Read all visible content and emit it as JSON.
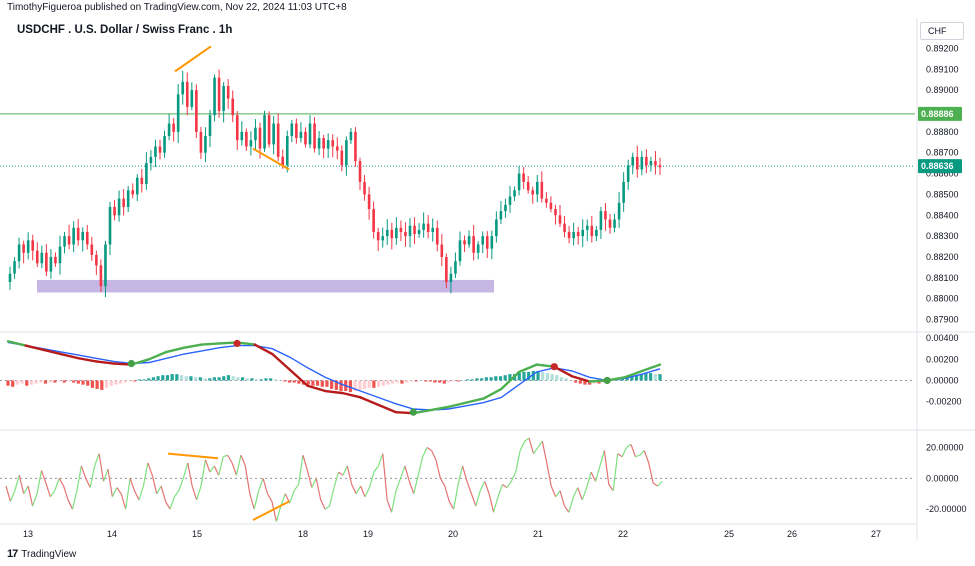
{
  "header": {
    "published_by": "TimothyFigueroa published on TradingView.com, Nov 22, 2024 11:03 UTC+8",
    "title": "USDCHF . U.S. Dollar / Swiss Franc . 1h",
    "currency": "CHF"
  },
  "footer": {
    "logo_text": "TradingView",
    "logo_mark": "17"
  },
  "colors": {
    "bull": "#089981",
    "bear": "#f23645",
    "level_line": "#4caf50",
    "last_price": "#089981",
    "zone": "#b39ddb",
    "divergence": "#ff9800",
    "fast_line": "#4caf50",
    "fast_line_down": "#b71c1c",
    "slow_line": "#2962ff",
    "hist_pos_strong": "#26a69a",
    "hist_pos_weak": "#b2dfdb",
    "hist_neg_strong": "#ef5350",
    "hist_neg_weak": "#ffcdd2",
    "osc_up": "#7ee07e",
    "osc_down": "#e57373"
  },
  "chart_data": [
    {
      "type": "candlestick",
      "symbol": "USDCHF",
      "timeframe": "1h",
      "x_axis_ticks": [
        "13",
        "14",
        "15",
        "18",
        "19",
        "20",
        "21",
        "22",
        "25",
        "26",
        "27"
      ],
      "y_range": [
        0.8785,
        0.8925
      ],
      "y_ticks": [
        "0.89200",
        "0.89100",
        "0.89000",
        "0.88900",
        "0.88800",
        "0.88700",
        "0.88600",
        "0.88500",
        "0.88400",
        "0.88300",
        "0.88200",
        "0.88100",
        "0.88000",
        "0.87900"
      ],
      "horizontal_level": {
        "value": 0.88886,
        "label": "0.88886"
      },
      "last_price": {
        "value": 0.88636,
        "label": "0.88636"
      },
      "demand_zone": {
        "from": 0.8803,
        "to": 0.8809
      },
      "divergence_lines": [
        {
          "from": 0.8909,
          "to": 0.8921
        },
        {
          "from": 0.8872,
          "to": 0.8862
        }
      ],
      "close_path": [
        0.8812,
        0.8818,
        0.8826,
        0.8822,
        0.8828,
        0.8823,
        0.8817,
        0.8822,
        0.8813,
        0.882,
        0.8817,
        0.8825,
        0.883,
        0.8826,
        0.8834,
        0.8828,
        0.8832,
        0.8826,
        0.8821,
        0.8816,
        0.8806,
        0.8826,
        0.8844,
        0.884,
        0.8848,
        0.8844,
        0.8852,
        0.885,
        0.8858,
        0.8855,
        0.8865,
        0.8868,
        0.8873,
        0.887,
        0.8878,
        0.8884,
        0.888,
        0.8898,
        0.8904,
        0.8892,
        0.89,
        0.888,
        0.887,
        0.8878,
        0.8888,
        0.8906,
        0.889,
        0.8902,
        0.8896,
        0.8888,
        0.8876,
        0.888,
        0.8873,
        0.8876,
        0.8882,
        0.8872,
        0.8888,
        0.8874,
        0.8884,
        0.8868,
        0.8864,
        0.8878,
        0.8884,
        0.8877,
        0.888,
        0.8874,
        0.8884,
        0.8872,
        0.8877,
        0.8872,
        0.8876,
        0.8873,
        0.8871,
        0.8864,
        0.8876,
        0.888,
        0.8866,
        0.8856,
        0.885,
        0.8843,
        0.8832,
        0.8828,
        0.883,
        0.8833,
        0.8829,
        0.8834,
        0.8832,
        0.883,
        0.8835,
        0.8831,
        0.8833,
        0.8836,
        0.8832,
        0.8834,
        0.8826,
        0.882,
        0.8808,
        0.8812,
        0.8818,
        0.8828,
        0.8826,
        0.883,
        0.8822,
        0.8826,
        0.883,
        0.8824,
        0.883,
        0.8838,
        0.8842,
        0.8845,
        0.8849,
        0.8852,
        0.886,
        0.8856,
        0.8852,
        0.885,
        0.8856,
        0.8848,
        0.8846,
        0.8843,
        0.884,
        0.8836,
        0.8832,
        0.8829,
        0.8832,
        0.883,
        0.8833,
        0.8835,
        0.883,
        0.8833,
        0.8842,
        0.8838,
        0.8834,
        0.8838,
        0.8846,
        0.8856,
        0.8864,
        0.8868,
        0.8862,
        0.8868,
        0.8864,
        0.8866,
        0.8864,
        0.8863
      ]
    },
    {
      "type": "line",
      "name_shown": "",
      "y_range": [
        -0.0045,
        0.0043
      ],
      "y_ticks": [
        "0.00400",
        "0.00200",
        "0.00000",
        "-0.00200"
      ],
      "fast_line": [
        0.0037,
        0.0033,
        0.0029,
        0.0025,
        0.0021,
        0.0018,
        0.0016,
        0.0015,
        0.002,
        0.0027,
        0.0031,
        0.0034,
        0.0035,
        0.0036,
        0.0034,
        0.0025,
        0.001,
        -0.0005,
        -0.001,
        -0.0012,
        -0.0016,
        -0.0023,
        -0.003,
        -0.0031,
        -0.0028,
        -0.0025,
        -0.0021,
        -0.0017,
        -0.0008,
        0.0008,
        0.0015,
        0.0013,
        0.0004,
        -0.0001,
        0.0,
        0.0003,
        0.0009,
        0.0015
      ],
      "slow_line": [
        0.0036,
        0.0033,
        0.003,
        0.0027,
        0.0024,
        0.0021,
        0.0018,
        0.0016,
        0.0017,
        0.0021,
        0.0025,
        0.0028,
        0.0031,
        0.0033,
        0.0033,
        0.003,
        0.0022,
        0.0012,
        0.0003,
        -0.0004,
        -0.001,
        -0.0016,
        -0.0022,
        -0.0027,
        -0.0028,
        -0.0027,
        -0.0024,
        -0.0021,
        -0.0016,
        -0.0004,
        0.0008,
        0.0012,
        0.0009,
        0.0003,
        0.0,
        0.0002,
        0.0006,
        0.0011
      ],
      "cross_markers": [
        {
          "index": 7,
          "value": 0.0016,
          "color": "#43a047"
        },
        {
          "index": 13,
          "value": 0.0035,
          "color": "#c62828"
        },
        {
          "index": 23,
          "value": -0.003,
          "color": "#43a047"
        },
        {
          "index": 31,
          "value": 0.0013,
          "color": "#c62828"
        },
        {
          "index": 34,
          "value": 0.0,
          "color": "#43a047"
        }
      ],
      "histogram": [
        -0.0005,
        -0.0006,
        -0.0004,
        -0.0003,
        -0.0005,
        -0.0004,
        -0.0003,
        -0.0002,
        -0.0003,
        -0.0002,
        -0.0002,
        -0.0001,
        -0.0002,
        -0.0001,
        -0.0002,
        -0.0003,
        -0.0004,
        -0.0005,
        -0.0007,
        -0.0008,
        -0.0009,
        -0.0007,
        -0.0005,
        -0.0004,
        -0.0003,
        -0.0002,
        -0.0001,
        -0.0001,
        0.0001,
        0.0001,
        0.0002,
        0.0003,
        0.0004,
        0.0005,
        0.0005,
        0.0006,
        0.0006,
        0.0005,
        0.0004,
        0.0004,
        0.0003,
        0.0003,
        0.0002,
        0.0002,
        0.0003,
        0.0003,
        0.0004,
        0.0005,
        0.0004,
        0.0003,
        0.0003,
        0.0002,
        0.0002,
        0.0001,
        0.0001,
        0.0002,
        0.0002,
        0.0001,
        0.0,
        -0.0001,
        -0.0002,
        -0.0002,
        -0.0003,
        -0.0004,
        -0.0004,
        -0.0005,
        -0.0005,
        -0.0006,
        -0.0006,
        -0.0008,
        -0.0009,
        -0.001,
        -0.001,
        -0.0011,
        -0.001,
        -0.0009,
        -0.0008,
        -0.0007,
        -0.0007,
        -0.0006,
        -0.0005,
        -0.0004,
        -0.0003,
        -0.0002,
        -0.0003,
        -0.0002,
        -0.0001,
        -0.0001,
        0.0,
        -0.0001,
        -0.0001,
        -0.0002,
        -0.0002,
        -0.0003,
        -0.0002,
        -0.0001,
        -0.0001,
        0.0,
        0.0001,
        0.0001,
        0.0002,
        0.0002,
        0.0003,
        0.0003,
        0.0004,
        0.0004,
        0.0005,
        0.0006,
        0.0006,
        0.0007,
        0.0008,
        0.0008,
        0.0009,
        0.0009,
        0.0008,
        0.0007,
        0.0006,
        0.0005,
        0.0003,
        0.0002,
        0.0,
        -0.0002,
        -0.0003,
        -0.0004,
        -0.0004,
        -0.0003,
        -0.0003,
        -0.0002,
        -0.0001,
        0.0,
        0.0001,
        0.0002,
        0.0003,
        0.0004,
        0.0005,
        0.0006,
        0.0007,
        0.0007,
        0.0006,
        0.0006
      ]
    },
    {
      "type": "line",
      "name_shown": "",
      "y_range": [
        -27,
        30
      ],
      "y_ticks": [
        "20.00000",
        "0.00000",
        "-20.00000"
      ],
      "series": [
        -5,
        -15,
        -8,
        2,
        -10,
        -5,
        -18,
        -10,
        5,
        -3,
        -12,
        -8,
        0,
        -5,
        -14,
        -20,
        -8,
        8,
        0,
        -6,
        8,
        16,
        -2,
        6,
        -12,
        -6,
        -10,
        -20,
        0,
        -8,
        -14,
        -5,
        10,
        2,
        -10,
        -5,
        -15,
        -20,
        -12,
        -8,
        0,
        10,
        -5,
        -14,
        -5,
        12,
        4,
        8,
        2,
        14,
        15,
        10,
        2,
        15,
        8,
        -10,
        -20,
        -8,
        0,
        -10,
        -15,
        -28,
        -18,
        -10,
        -16,
        -8,
        -4,
        15,
        5,
        -6,
        0,
        -14,
        -20,
        -18,
        -6,
        4,
        2,
        8,
        -4,
        -10,
        -5,
        -12,
        -6,
        4,
        8,
        16,
        -14,
        -22,
        -8,
        0,
        8,
        -2,
        -10,
        2,
        14,
        20,
        18,
        12,
        0,
        -5,
        -15,
        -20,
        -4,
        8,
        -2,
        -10,
        -18,
        -8,
        -2,
        -10,
        -22,
        -12,
        -4,
        -6,
        -2,
        4,
        18,
        24,
        26,
        16,
        20,
        24,
        10,
        -5,
        -12,
        -8,
        -18,
        -22,
        -12,
        -6,
        -14,
        -6,
        4,
        -2,
        8,
        18,
        -4,
        -8,
        16,
        14,
        20,
        22,
        14,
        15,
        18,
        10,
        -3,
        -5,
        -2
      ],
      "divergence_lines": [
        {
          "from": 16,
          "to": 13
        },
        {
          "from": -27,
          "to": -15
        }
      ]
    }
  ]
}
